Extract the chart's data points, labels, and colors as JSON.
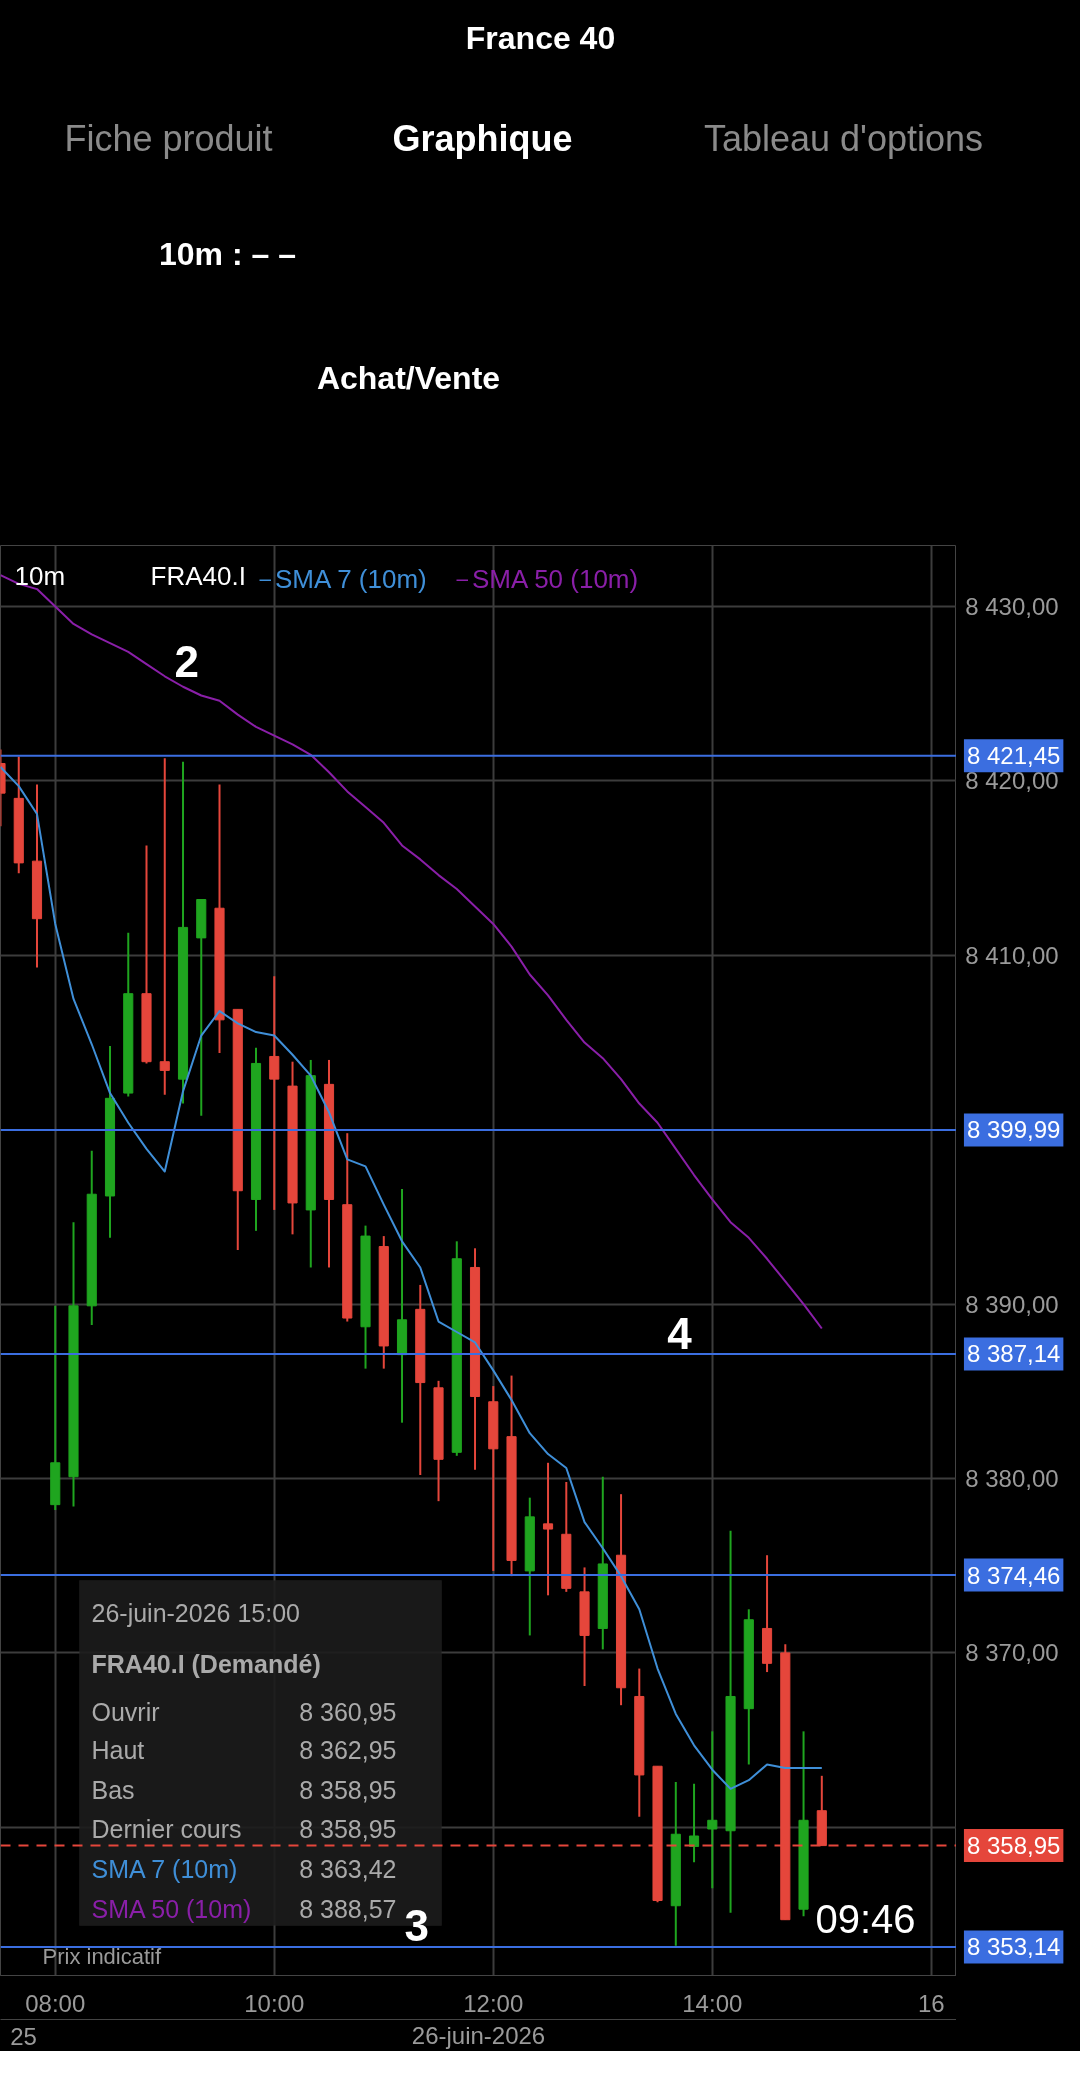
{
  "chart_data": [
    {
      "type": "other",
      "title": "France 40",
      "annotations": [
        "Fiche produit",
        "Graphique",
        "Tableau d'options",
        "10m : – –",
        "Achat/Vente"
      ]
    },
    {
      "type": "candlestick",
      "xlabel": "26-juin-2026",
      "x": [
        7.5,
        7.6667,
        7.8333,
        8,
        8.1667,
        8.3333,
        8.5,
        8.6667,
        8.8333,
        9,
        9.1667,
        9.3333,
        9.5,
        9.6667,
        9.8333,
        10,
        10.1667,
        10.3333,
        10.5,
        10.6667,
        10.8333,
        11,
        11.1667,
        11.3333,
        11.5,
        11.6667,
        11.8333,
        12,
        12.1667,
        12.3333,
        12.5,
        12.6667,
        12.8333,
        13,
        13.1667,
        13.3333,
        13.5,
        13.6667,
        13.8333,
        14,
        14.1667,
        14.3333,
        14.5,
        14.6667,
        14.8333,
        15
      ],
      "ohlc": [
        [
          8421.0,
          8421.8,
          8417.4,
          8419.3
        ],
        [
          8419.0,
          8421.4,
          8414.7,
          8415.3
        ],
        [
          8415.4,
          8419.8,
          8409.3,
          8412.1
        ],
        [
          8378.5,
          8389.9,
          8378.2,
          8380.9
        ],
        [
          8380.1,
          8394.7,
          8378.4,
          8389.9
        ],
        [
          8389.9,
          8398.8,
          8388.8,
          8396.3
        ],
        [
          8396.2,
          8404.8,
          8393.8,
          8401.8
        ],
        [
          8402.1,
          8411.3,
          8401.9,
          8407.8
        ],
        [
          8407.8,
          8416.3,
          8403.8,
          8403.9
        ],
        [
          8403.9,
          8421.3,
          8402.0,
          8403.4
        ],
        [
          8402.9,
          8421.1,
          8401.5,
          8411.6
        ],
        [
          8411.0,
          8413.2,
          8400.8,
          8413.2
        ],
        [
          8412.7,
          8419.8,
          8404.4,
          8406.3
        ],
        [
          8406.9,
          8406.9,
          8393.1,
          8396.5
        ],
        [
          8396.0,
          8404.7,
          8394.2,
          8403.8
        ],
        [
          8404.2,
          8408.8,
          8395.4,
          8402.9
        ],
        [
          8402.5,
          8403.9,
          8394.0,
          8395.8
        ],
        [
          8395.4,
          8404.0,
          8392.1,
          8403.1
        ],
        [
          8402.6,
          8404.0,
          8392.1,
          8396.0
        ],
        [
          8395.7,
          8399.8,
          8389.0,
          8389.2
        ],
        [
          8388.7,
          8394.5,
          8386.3,
          8393.9
        ],
        [
          8393.3,
          8393.9,
          8386.3,
          8387.6
        ],
        [
          8387.1,
          8396.6,
          8383.2,
          8389.1
        ],
        [
          8389.7,
          8391.1,
          8380.2,
          8385.5
        ],
        [
          8385.2,
          8385.6,
          8378.7,
          8381.1
        ],
        [
          8381.5,
          8393.6,
          8381.3,
          8392.6
        ],
        [
          8392.1,
          8393.2,
          8380.5,
          8384.7
        ],
        [
          8384.4,
          8385.3,
          8374.7,
          8381.7
        ],
        [
          8382.4,
          8385.9,
          8374.4,
          8375.3
        ],
        [
          8374.7,
          8378.9,
          8371.0,
          8377.8
        ],
        [
          8377.4,
          8380.9,
          8373.3,
          8377.1
        ],
        [
          8376.8,
          8379.8,
          8373.5,
          8373.7
        ],
        [
          8373.5,
          8374.9,
          8368.1,
          8371.0
        ],
        [
          8371.4,
          8380.1,
          8370.2,
          8375.1
        ],
        [
          8375.6,
          8379.1,
          8367.0,
          8368.0
        ],
        [
          8367.5,
          8369.1,
          8360.6,
          8363.0
        ],
        [
          8363.5,
          8363.5,
          8355.7,
          8355.8
        ],
        [
          8355.5,
          8362.6,
          8353.2,
          8359.6
        ],
        [
          8358.9,
          8362.5,
          8358.0,
          8359.5
        ],
        [
          8359.9,
          8365.5,
          8356.5,
          8360.4
        ],
        [
          8359.8,
          8377.0,
          8355.1,
          8367.5
        ],
        [
          8366.8,
          8372.5,
          8363.6,
          8371.9
        ],
        [
          8371.4,
          8375.6,
          8368.9,
          8369.4
        ],
        [
          8370.0,
          8370.5,
          8354.7,
          8354.7
        ],
        [
          8355.3,
          8365.5,
          8354.9,
          8360.4
        ],
        [
          8360.95,
          8362.95,
          8358.95,
          8358.95
        ]
      ],
      "colors": [
        "#e5463b",
        "#e5463b",
        "#e5463b",
        "#1fa51f",
        "#1fa51f",
        "#1fa51f",
        "#1fa51f",
        "#1fa51f",
        "#e5463b",
        "#e5463b",
        "#1fa51f",
        "#1fa51f",
        "#e5463b",
        "#e5463b",
        "#1fa51f",
        "#e5463b",
        "#e5463b",
        "#1fa51f",
        "#e5463b",
        "#e5463b",
        "#1fa51f",
        "#e5463b",
        "#1fa51f",
        "#e5463b",
        "#e5463b",
        "#1fa51f",
        "#e5463b",
        "#e5463b",
        "#e5463b",
        "#1fa51f",
        "#e5463b",
        "#e5463b",
        "#e5463b",
        "#1fa51f",
        "#e5463b",
        "#e5463b",
        "#e5463b",
        "#1fa51f",
        "#1fa51f",
        "#1fa51f",
        "#1fa51f",
        "#1fa51f",
        "#e5463b",
        "#e5463b",
        "#1fa51f",
        "#e5463b"
      ],
      "series": [
        {
          "type": "line",
          "name": "SMA 7 (10m)",
          "color": "#3f8fd8",
          "values": [
            8420.8,
            8419.7,
            8418.1,
            8411.8,
            8407.5,
            8404.9,
            8402.1,
            8400.4,
            8398.9,
            8397.6,
            8402.2,
            8405.4,
            8406.8,
            8406.1,
            8405.6,
            8405.4,
            8404.3,
            8403.1,
            8401.0,
            8398.3,
            8397.9,
            8395.7,
            8393.6,
            8392.1,
            8389.0,
            8388.4,
            8387.8,
            8386.2,
            8384.5,
            8382.6,
            8381.4,
            8380.6,
            8377.5,
            8376.0,
            8374.4,
            8372.5,
            8369.1,
            8366.5,
            8364.7,
            8363.3,
            8362.2,
            8362.7,
            8363.6,
            8363.4,
            8363.4,
            8363.4
          ]
        },
        {
          "type": "line",
          "name": "SMA 50 (10m)",
          "color": "#8a1fa8",
          "values": [
            8431.8,
            8431.3,
            8431.0,
            8430.0,
            8429.0,
            8428.4,
            8427.9,
            8427.4,
            8426.7,
            8426.0,
            8425.4,
            8424.9,
            8424.6,
            8423.8,
            8423.1,
            8422.6,
            8422.1,
            8421.5,
            8420.5,
            8419.4,
            8418.5,
            8417.6,
            8416.3,
            8415.5,
            8414.6,
            8413.8,
            8412.8,
            8411.8,
            8410.5,
            8408.9,
            8407.7,
            8406.3,
            8405.0,
            8404.1,
            8402.9,
            8401.5,
            8400.4,
            8398.9,
            8397.4,
            8396.0,
            8394.7,
            8393.8,
            8392.6,
            8391.3,
            8390.0,
            8388.6
          ]
        }
      ],
      "xlim": [
        7.5,
        16.23
      ],
      "ylim": [
        8351.5,
        8433.5
      ],
      "xticks": [
        {
          "value": 8,
          "label": "08:00"
        },
        {
          "value": 10,
          "label": "10:00"
        },
        {
          "value": 12,
          "label": "12:00"
        },
        {
          "value": 14,
          "label": "14:00"
        },
        {
          "value": 16,
          "label": "16"
        }
      ],
      "yticks": [
        {
          "value": 8360,
          "label": null
        },
        {
          "value": 8370,
          "label": "8 370,00"
        },
        {
          "value": 8380,
          "label": "8 380,00"
        },
        {
          "value": 8390,
          "label": "8 390,00"
        },
        {
          "value": 8410,
          "label": "8 410,00"
        },
        {
          "value": 8420,
          "label": "8 420,00"
        },
        {
          "value": 8430,
          "label": "8 430,00"
        }
      ],
      "ref_lines": [
        {
          "axis": "y",
          "value": 8421.45,
          "label": "8 421,45",
          "color": "#3b6ee0",
          "line_style": "solid"
        },
        {
          "axis": "y",
          "value": 8399.99,
          "label": "8 399,99",
          "color": "#3b6ee0",
          "line_style": "solid"
        },
        {
          "axis": "y",
          "value": 8387.14,
          "label": "8 387,14",
          "color": "#3b6ee0",
          "line_style": "solid"
        },
        {
          "axis": "y",
          "value": 8374.46,
          "label": "8 374,46",
          "color": "#3b6ee0",
          "line_style": "solid"
        },
        {
          "axis": "y",
          "value": 8358.95,
          "label": "8 358,95",
          "color": "#e5463b",
          "line_style": "dashed"
        },
        {
          "axis": "y",
          "value": 8353.14,
          "label": "8 353,14",
          "color": "#3b6ee0",
          "line_style": "solid"
        }
      ],
      "grid": true,
      "legend": "top left",
      "annotations": [
        {
          "text": "2",
          "x": 9.2,
          "y": 8425.6
        },
        {
          "text": "4",
          "x": 13.7,
          "y": 8387.1
        },
        {
          "text": "3",
          "x": 11.3,
          "y": 8353.14
        },
        "10m",
        "FRA40.I",
        "26-juin-2026 15:00",
        "FRA40.I (Demandé)",
        "Ouvrir",
        "8 360,95",
        "Haut",
        "8 362,95",
        "Bas",
        "8 358,95",
        "Dernier cours",
        "8 358,95",
        "SMA 7 (10m)",
        "8 363,42",
        "SMA 50 (10m)",
        "8 388,57",
        "Prix indicatif",
        "25",
        "09:46"
      ]
    }
  ]
}
